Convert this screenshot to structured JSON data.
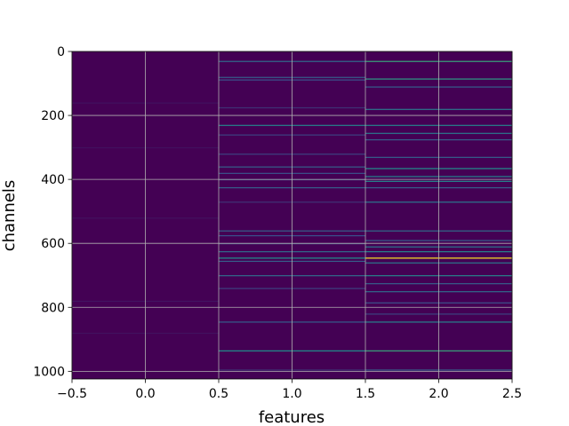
{
  "chart_data": {
    "type": "heatmap",
    "title": "",
    "xlabel": "features",
    "ylabel": "channels",
    "xlim": [
      -0.5,
      2.5
    ],
    "ylim": [
      1024,
      0
    ],
    "y_inverted": true,
    "grid": true,
    "colormap": "viridis",
    "background_color": "#440154",
    "x_ticks": [
      -0.5,
      0.0,
      0.5,
      1.0,
      1.5,
      2.0,
      2.5
    ],
    "x_tick_labels": [
      "−0.5",
      "0.0",
      "0.5",
      "1.0",
      "1.5",
      "2.0",
      "2.5"
    ],
    "y_ticks": [
      0,
      200,
      400,
      600,
      800,
      1000
    ],
    "y_tick_labels": [
      "0",
      "200",
      "400",
      "600",
      "800",
      "1000"
    ],
    "columns": [
      {
        "feature": 0,
        "stripes": [
          {
            "channel": 160,
            "value": 0.05
          },
          {
            "channel": 300,
            "value": 0.05
          },
          {
            "channel": 520,
            "value": 0.05
          },
          {
            "channel": 780,
            "value": 0.06
          },
          {
            "channel": 880,
            "value": 0.05
          }
        ]
      },
      {
        "feature": 1,
        "stripes": [
          {
            "channel": 30,
            "value": 0.35
          },
          {
            "channel": 80,
            "value": 0.3
          },
          {
            "channel": 88,
            "value": 0.25
          },
          {
            "channel": 175,
            "value": 0.15
          },
          {
            "channel": 230,
            "value": 0.45
          },
          {
            "channel": 260,
            "value": 0.2
          },
          {
            "channel": 320,
            "value": 0.2
          },
          {
            "channel": 360,
            "value": 0.3
          },
          {
            "channel": 380,
            "value": 0.25
          },
          {
            "channel": 400,
            "value": 0.2
          },
          {
            "channel": 425,
            "value": 0.3
          },
          {
            "channel": 470,
            "value": 0.15
          },
          {
            "channel": 560,
            "value": 0.3
          },
          {
            "channel": 575,
            "value": 0.25
          },
          {
            "channel": 600,
            "value": 0.2
          },
          {
            "channel": 625,
            "value": 0.35
          },
          {
            "channel": 645,
            "value": 0.5
          },
          {
            "channel": 655,
            "value": 0.3
          },
          {
            "channel": 700,
            "value": 0.35
          },
          {
            "channel": 740,
            "value": 0.2
          },
          {
            "channel": 845,
            "value": 0.3
          },
          {
            "channel": 935,
            "value": 0.5
          },
          {
            "channel": 995,
            "value": 0.15
          }
        ]
      },
      {
        "feature": 2,
        "stripes": [
          {
            "channel": 30,
            "value": 0.6
          },
          {
            "channel": 85,
            "value": 0.55
          },
          {
            "channel": 110,
            "value": 0.3
          },
          {
            "channel": 180,
            "value": 0.4
          },
          {
            "channel": 230,
            "value": 0.45
          },
          {
            "channel": 255,
            "value": 0.4
          },
          {
            "channel": 275,
            "value": 0.3
          },
          {
            "channel": 330,
            "value": 0.3
          },
          {
            "channel": 365,
            "value": 0.5
          },
          {
            "channel": 390,
            "value": 0.45
          },
          {
            "channel": 405,
            "value": 0.45
          },
          {
            "channel": 425,
            "value": 0.3
          },
          {
            "channel": 470,
            "value": 0.4
          },
          {
            "channel": 560,
            "value": 0.35
          },
          {
            "channel": 590,
            "value": 0.3
          },
          {
            "channel": 610,
            "value": 0.4
          },
          {
            "channel": 625,
            "value": 0.45
          },
          {
            "channel": 645,
            "value": 1.0
          },
          {
            "channel": 660,
            "value": 0.4
          },
          {
            "channel": 700,
            "value": 0.45
          },
          {
            "channel": 725,
            "value": 0.3
          },
          {
            "channel": 750,
            "value": 0.35
          },
          {
            "channel": 785,
            "value": 0.25
          },
          {
            "channel": 820,
            "value": 0.2
          },
          {
            "channel": 845,
            "value": 0.45
          },
          {
            "channel": 935,
            "value": 0.6
          },
          {
            "channel": 995,
            "value": 0.3
          }
        ]
      }
    ]
  }
}
